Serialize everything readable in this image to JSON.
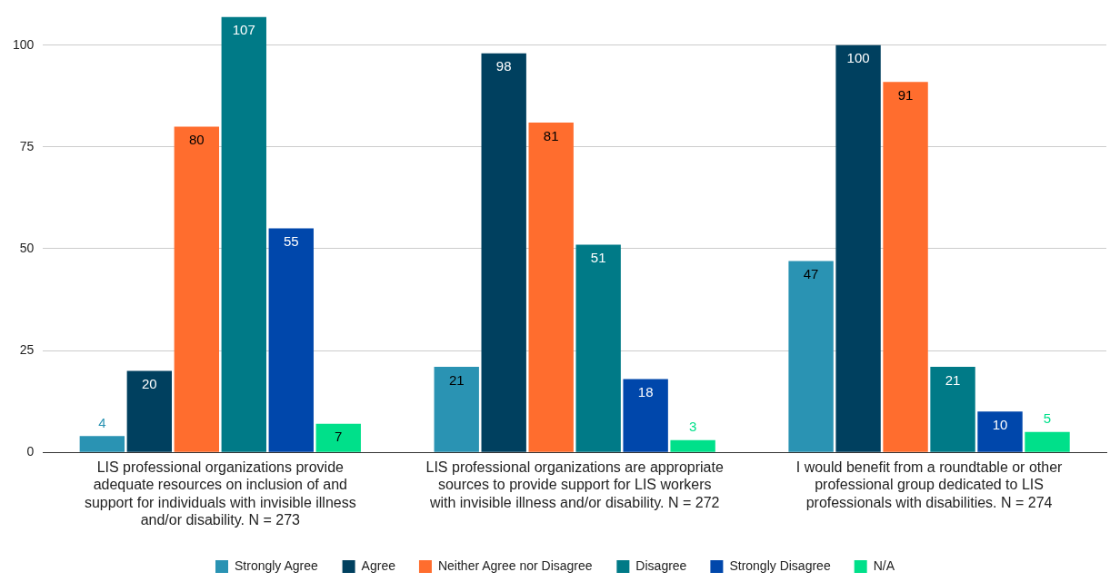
{
  "chart_data": {
    "type": "bar",
    "categories": [
      "LIS professional organizations provide adequate resources on inclusion of and support for individuals with invisible illness and/or disability. N = 273",
      "LIS professional organizations are appropriate sources to provide support for LIS workers with invisible illness and/or disability. N = 272",
      "I would benefit from a roundtable or other professional group dedicated to LIS professionals with disabilities. N = 274"
    ],
    "series": [
      {
        "name": "Strongly Agree",
        "color": "#2a93b3",
        "values": [
          4,
          21,
          47
        ]
      },
      {
        "name": "Agree",
        "color": "#00405f",
        "values": [
          20,
          98,
          100
        ]
      },
      {
        "name": "Neither Agree nor Disagree",
        "color": "#ff6d2e",
        "values": [
          80,
          81,
          91
        ]
      },
      {
        "name": "Disagree",
        "color": "#007a87",
        "values": [
          107,
          51,
          21
        ]
      },
      {
        "name": "Strongly Disagree",
        "color": "#0047ab",
        "values": [
          55,
          18,
          10
        ]
      },
      {
        "name": "N/A",
        "color": "#00e08a",
        "values": [
          7,
          3,
          5
        ]
      }
    ],
    "ylim": [
      0,
      107
    ],
    "yticks": [
      0,
      25,
      50,
      75,
      100
    ],
    "grid": "y",
    "legend": "bottom",
    "data_labels": true
  }
}
